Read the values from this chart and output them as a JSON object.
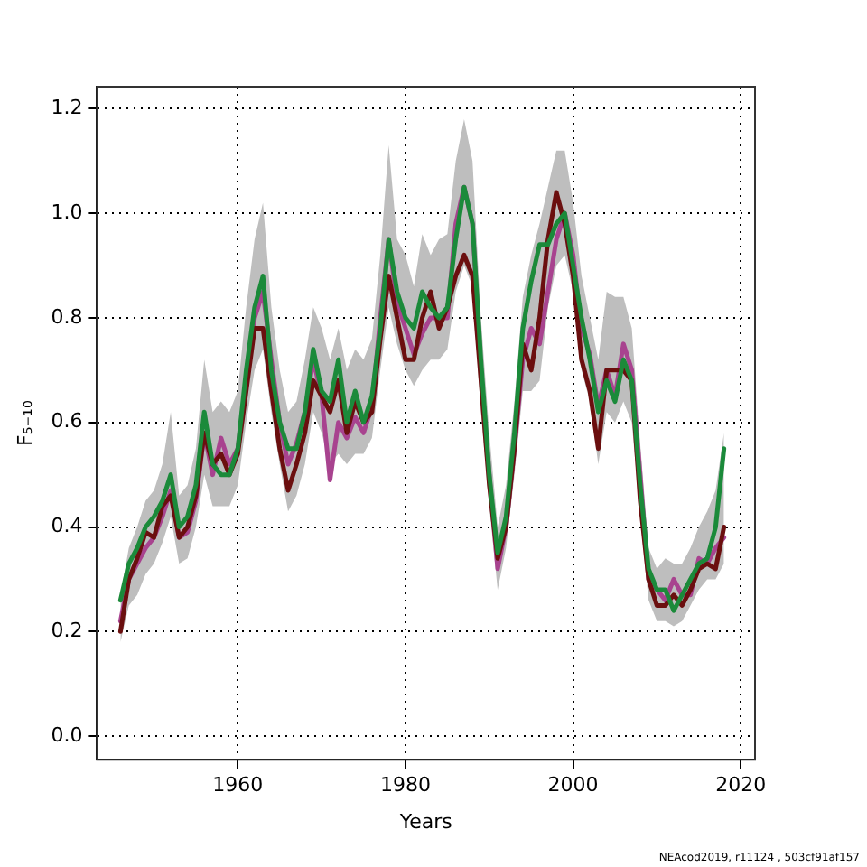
{
  "chart_data": {
    "type": "line",
    "xlabel": "Years",
    "ylabel": "F₅₋₁₀",
    "x": [
      1946,
      1947,
      1948,
      1949,
      1950,
      1951,
      1952,
      1953,
      1954,
      1955,
      1956,
      1957,
      1958,
      1959,
      1960,
      1961,
      1962,
      1963,
      1964,
      1965,
      1966,
      1967,
      1968,
      1969,
      1970,
      1971,
      1972,
      1973,
      1974,
      1975,
      1976,
      1977,
      1978,
      1979,
      1980,
      1981,
      1982,
      1983,
      1984,
      1985,
      1986,
      1987,
      1988,
      1989,
      1990,
      1991,
      1992,
      1993,
      1994,
      1995,
      1996,
      1997,
      1998,
      1999,
      2000,
      2001,
      2002,
      2003,
      2004,
      2005,
      2006,
      2007,
      2008,
      2009,
      2010,
      2011,
      2012,
      2013,
      2014,
      2015,
      2016,
      2017,
      2018
    ],
    "series": [
      {
        "color": "#1b8a3a",
        "values": [
          0.26,
          0.33,
          0.36,
          0.4,
          0.42,
          0.45,
          0.5,
          0.4,
          0.42,
          0.48,
          0.62,
          0.52,
          0.5,
          0.5,
          0.55,
          0.7,
          0.82,
          0.88,
          0.7,
          0.6,
          0.55,
          0.55,
          0.62,
          0.74,
          0.66,
          0.64,
          0.72,
          0.6,
          0.66,
          0.6,
          0.65,
          0.78,
          0.95,
          0.85,
          0.8,
          0.78,
          0.85,
          0.82,
          0.8,
          0.82,
          0.95,
          1.05,
          0.98,
          0.72,
          0.5,
          0.35,
          0.42,
          0.58,
          0.78,
          0.87,
          0.94,
          0.94,
          0.98,
          1.0,
          0.9,
          0.8,
          0.72,
          0.62,
          0.68,
          0.64,
          0.72,
          0.68,
          0.48,
          0.32,
          0.28,
          0.28,
          0.24,
          0.27,
          0.3,
          0.33,
          0.34,
          0.4,
          0.55
        ]
      },
      {
        "color": "#6b0f0f",
        "values": [
          0.2,
          0.3,
          0.34,
          0.39,
          0.38,
          0.44,
          0.46,
          0.38,
          0.4,
          0.46,
          0.58,
          0.52,
          0.54,
          0.5,
          0.54,
          0.66,
          0.78,
          0.78,
          0.66,
          0.55,
          0.47,
          0.52,
          0.58,
          0.68,
          0.65,
          0.62,
          0.68,
          0.58,
          0.64,
          0.6,
          0.62,
          0.76,
          0.88,
          0.8,
          0.72,
          0.72,
          0.8,
          0.85,
          0.78,
          0.82,
          0.88,
          0.92,
          0.88,
          0.68,
          0.48,
          0.34,
          0.4,
          0.55,
          0.75,
          0.7,
          0.8,
          0.95,
          1.04,
          0.98,
          0.88,
          0.72,
          0.66,
          0.55,
          0.7,
          0.7,
          0.7,
          0.68,
          0.45,
          0.3,
          0.25,
          0.25,
          0.27,
          0.25,
          0.28,
          0.32,
          0.33,
          0.32,
          0.4
        ]
      },
      {
        "color": "#a8438f",
        "values": [
          0.22,
          0.3,
          0.33,
          0.36,
          0.38,
          0.42,
          0.47,
          0.38,
          0.39,
          0.45,
          0.58,
          0.5,
          0.57,
          0.52,
          0.55,
          0.68,
          0.8,
          0.85,
          0.72,
          0.6,
          0.52,
          0.56,
          0.62,
          0.72,
          0.65,
          0.49,
          0.6,
          0.57,
          0.61,
          0.58,
          0.63,
          0.8,
          0.95,
          0.83,
          0.78,
          0.73,
          0.77,
          0.8,
          0.8,
          0.8,
          0.98,
          1.05,
          0.98,
          0.7,
          0.5,
          0.32,
          0.4,
          0.55,
          0.72,
          0.78,
          0.75,
          0.85,
          0.95,
          1.0,
          0.92,
          0.78,
          0.73,
          0.63,
          0.7,
          0.65,
          0.75,
          0.7,
          0.5,
          0.3,
          0.28,
          0.26,
          0.3,
          0.27,
          0.27,
          0.34,
          0.33,
          0.36,
          0.38
        ],
        "lower": [
          0.18,
          0.25,
          0.27,
          0.31,
          0.33,
          0.37,
          0.42,
          0.33,
          0.34,
          0.4,
          0.5,
          0.44,
          0.44,
          0.44,
          0.48,
          0.6,
          0.7,
          0.74,
          0.62,
          0.52,
          0.43,
          0.46,
          0.52,
          0.62,
          0.58,
          0.52,
          0.54,
          0.52,
          0.54,
          0.54,
          0.57,
          0.7,
          0.82,
          0.75,
          0.7,
          0.67,
          0.7,
          0.72,
          0.72,
          0.74,
          0.85,
          0.9,
          0.86,
          0.62,
          0.44,
          0.28,
          0.36,
          0.5,
          0.66,
          0.66,
          0.68,
          0.82,
          0.9,
          0.92,
          0.85,
          0.7,
          0.64,
          0.52,
          0.62,
          0.6,
          0.64,
          0.6,
          0.42,
          0.26,
          0.22,
          0.22,
          0.21,
          0.22,
          0.25,
          0.28,
          0.3,
          0.3,
          0.33
        ],
        "upper": [
          0.27,
          0.36,
          0.4,
          0.45,
          0.47,
          0.52,
          0.62,
          0.46,
          0.48,
          0.55,
          0.72,
          0.62,
          0.64,
          0.62,
          0.66,
          0.82,
          0.95,
          1.02,
          0.82,
          0.7,
          0.62,
          0.64,
          0.72,
          0.82,
          0.78,
          0.72,
          0.78,
          0.7,
          0.74,
          0.72,
          0.76,
          0.92,
          1.13,
          0.95,
          0.92,
          0.86,
          0.96,
          0.92,
          0.95,
          0.96,
          1.1,
          1.18,
          1.1,
          0.8,
          0.58,
          0.4,
          0.48,
          0.64,
          0.84,
          0.92,
          0.98,
          1.05,
          1.12,
          1.12,
          1.02,
          0.88,
          0.8,
          0.72,
          0.85,
          0.84,
          0.84,
          0.78,
          0.56,
          0.36,
          0.32,
          0.34,
          0.33,
          0.33,
          0.36,
          0.4,
          0.43,
          0.47,
          0.58
        ]
      }
    ],
    "xlim": [
      1943.2,
      2021.7
    ],
    "xticks": [
      1960,
      1980,
      2000,
      2020
    ],
    "ylim": [
      -0.045,
      1.242
    ],
    "yticks": [
      {
        "value": 0,
        "label": "0.0"
      },
      {
        "value": 0.2,
        "label": "0.2"
      },
      {
        "value": 0.4,
        "label": "0.4"
      },
      {
        "value": 0.6,
        "label": "0.6"
      },
      {
        "value": 0.8,
        "label": "0.8"
      },
      {
        "value": 1,
        "label": "1.0"
      },
      {
        "value": 1.2,
        "label": "1.2"
      }
    ],
    "grid": true,
    "legend": false,
    "marker": "none",
    "line_style": "solid",
    "annotations": [
      "NEAcod2019, r11124 , 503cf91af157"
    ]
  }
}
